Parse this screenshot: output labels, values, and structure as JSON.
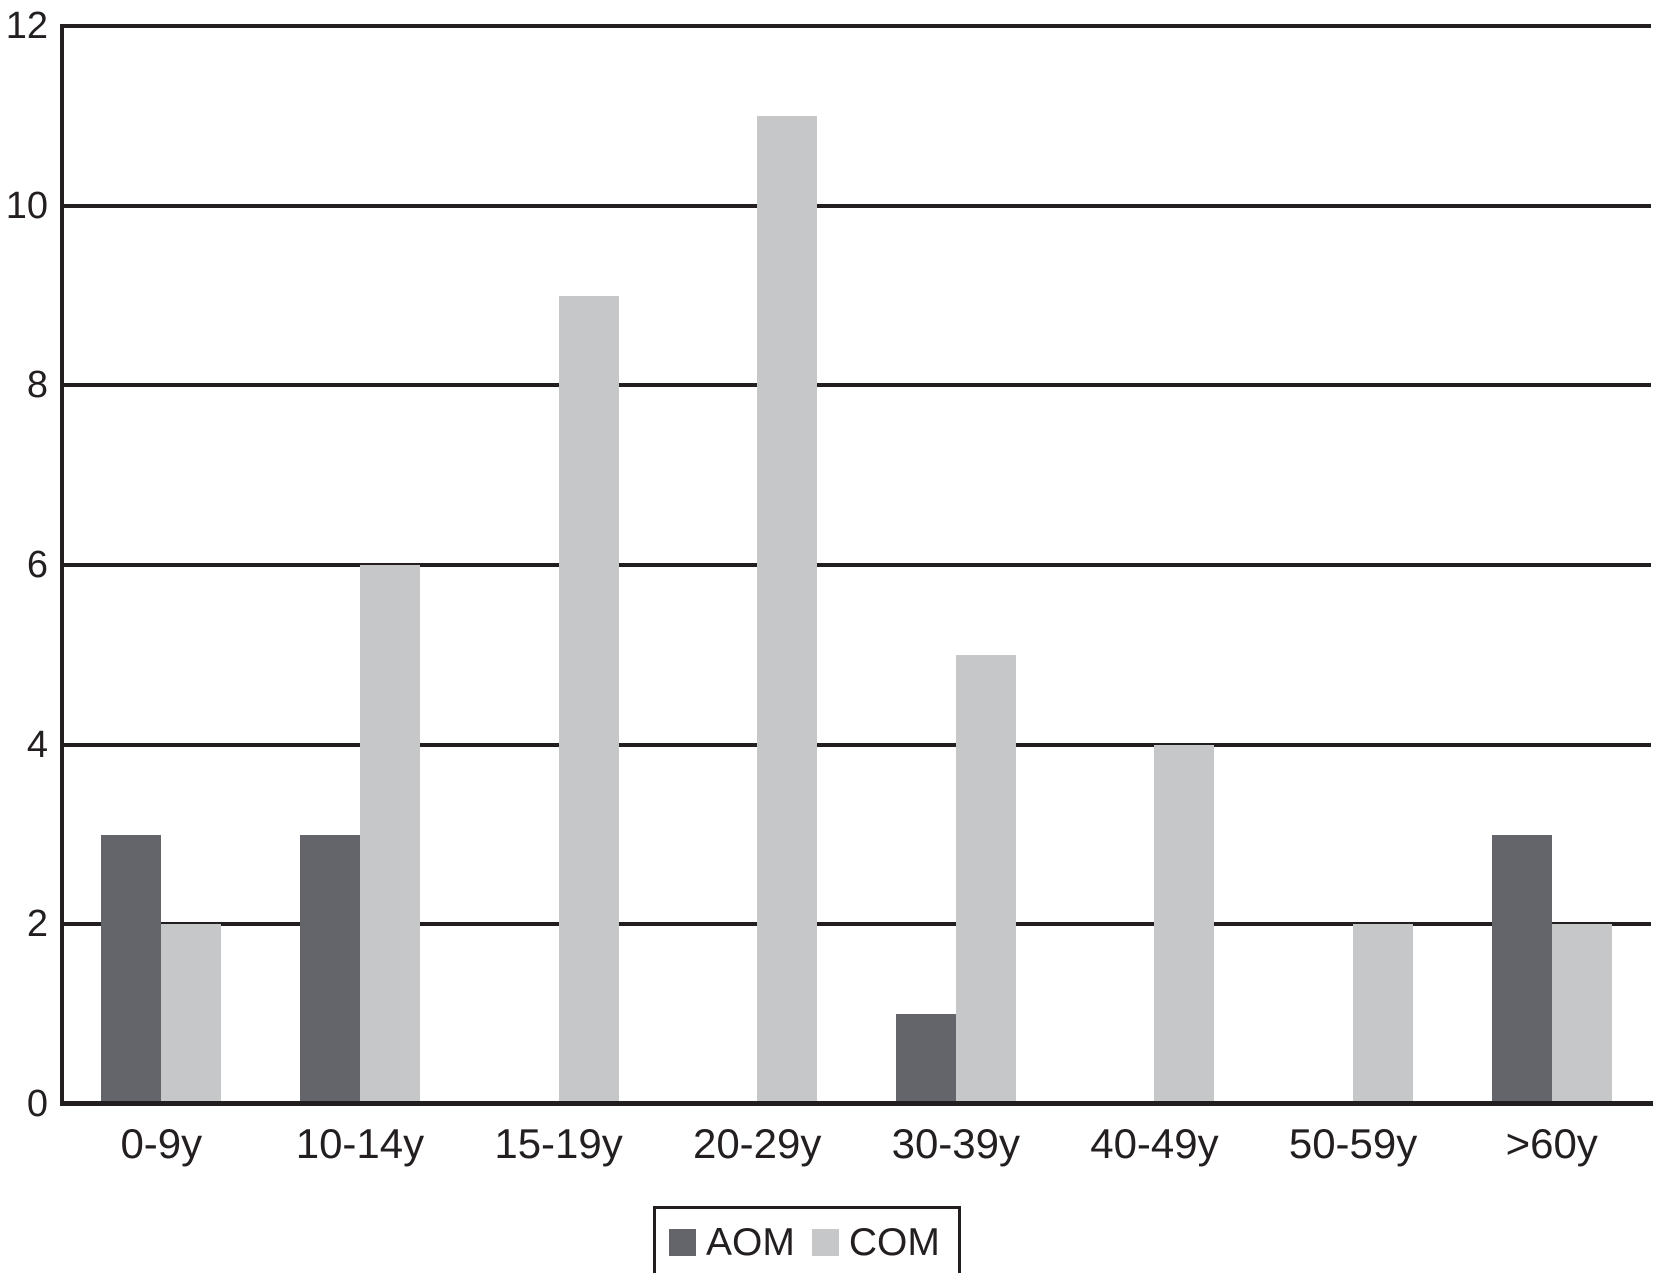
{
  "chart_data": {
    "type": "bar",
    "title": "",
    "xlabel": "",
    "ylabel": "",
    "categories": [
      "0-9y",
      "10-14y",
      "15-19y",
      "20-29y",
      "30-39y",
      "40-49y",
      "50-59y",
      ">60y"
    ],
    "series": [
      {
        "name": "AOM",
        "values": [
          3,
          3,
          0,
          0,
          1,
          0,
          0,
          3
        ],
        "color": "#63656a"
      },
      {
        "name": "COM",
        "values": [
          2,
          6,
          9,
          11,
          5,
          4,
          2,
          2
        ],
        "color": "#c6c7c9"
      }
    ],
    "ylim": [
      0,
      12
    ],
    "yticks": [
      0,
      2,
      4,
      6,
      8,
      10,
      12
    ],
    "grid": true,
    "gridline_color": "#231f20",
    "axis_color": "#231f20",
    "legend_position": "bottom-center",
    "legend_border_color": "#231f20",
    "background_color": "#ffffff"
  }
}
